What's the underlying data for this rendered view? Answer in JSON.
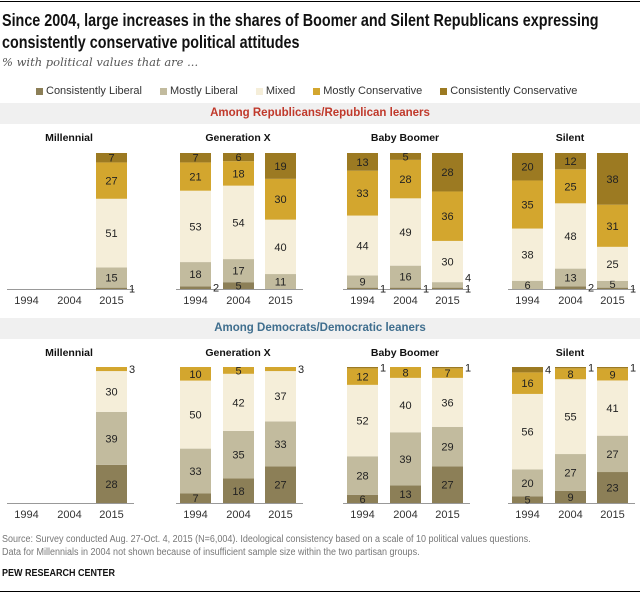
{
  "title": "Since 2004, large increases in the shares of Boomer and Silent Republicans expressing consistently conservative political attitudes",
  "subtitle": "% with political values that are ...",
  "footer": {
    "source": "Source: Survey conducted Aug. 27-Oct. 4, 2015 (N=6,004).  Ideological consistency based on a scale of 10 political values questions.",
    "note": "Data for Millennials in 2004 not shown because of insufficient sample size within the two partisan groups.",
    "org": "PEW RESEARCH CENTER"
  },
  "colors": {
    "section_rep": "#c0392b",
    "section_dem": "#3f6e8e"
  },
  "chart_data": {
    "type": "bar",
    "stacked": true,
    "categories": [
      "1994",
      "2004",
      "2015"
    ],
    "series_names": [
      "Consistently Liberal",
      "Mostly Liberal",
      "Mixed",
      "Mostly Conservative",
      "Consistently Conservative"
    ],
    "series_colors": [
      "#8c7f57",
      "#c2bb9e",
      "#f5eed9",
      "#d3a62e",
      "#9c7a22"
    ],
    "ylim": [
      0,
      100
    ],
    "sections": [
      {
        "label": "Among Republicans/Republican leaners",
        "panels": [
          {
            "title": "Millennial",
            "bars": [
              null,
              null,
              [
                1,
                15,
                51,
                27,
                7
              ]
            ]
          },
          {
            "title": "Generation X",
            "bars": [
              [
                2,
                18,
                53,
                21,
                7
              ],
              [
                5,
                17,
                54,
                18,
                6
              ],
              [
                0,
                11,
                40,
                30,
                19
              ]
            ]
          },
          {
            "title": "Baby Boomer",
            "bars": [
              [
                1,
                9,
                44,
                33,
                13
              ],
              [
                1,
                16,
                49,
                28,
                5
              ],
              [
                1,
                4,
                30,
                36,
                28
              ]
            ]
          },
          {
            "title": "Silent",
            "bars": [
              [
                0,
                6,
                38,
                35,
                20
              ],
              [
                2,
                13,
                48,
                25,
                12
              ],
              [
                1,
                5,
                25,
                31,
                38
              ]
            ]
          }
        ]
      },
      {
        "label": "Among Democrats/Democratic leaners",
        "panels": [
          {
            "title": "Millennial",
            "bars": [
              null,
              null,
              [
                28,
                39,
                30,
                3,
                0
              ]
            ]
          },
          {
            "title": "Generation X",
            "bars": [
              [
                7,
                33,
                50,
                10,
                0
              ],
              [
                18,
                35,
                42,
                5,
                0
              ],
              [
                27,
                33,
                37,
                3,
                0
              ]
            ]
          },
          {
            "title": "Baby Boomer",
            "bars": [
              [
                6,
                28,
                52,
                12,
                1
              ],
              [
                13,
                39,
                40,
                8,
                0
              ],
              [
                27,
                29,
                36,
                7,
                1
              ]
            ]
          },
          {
            "title": "Silent",
            "bars": [
              [
                5,
                20,
                56,
                16,
                4
              ],
              [
                9,
                27,
                55,
                8,
                1
              ],
              [
                23,
                27,
                41,
                9,
                1
              ]
            ]
          }
        ]
      }
    ]
  }
}
